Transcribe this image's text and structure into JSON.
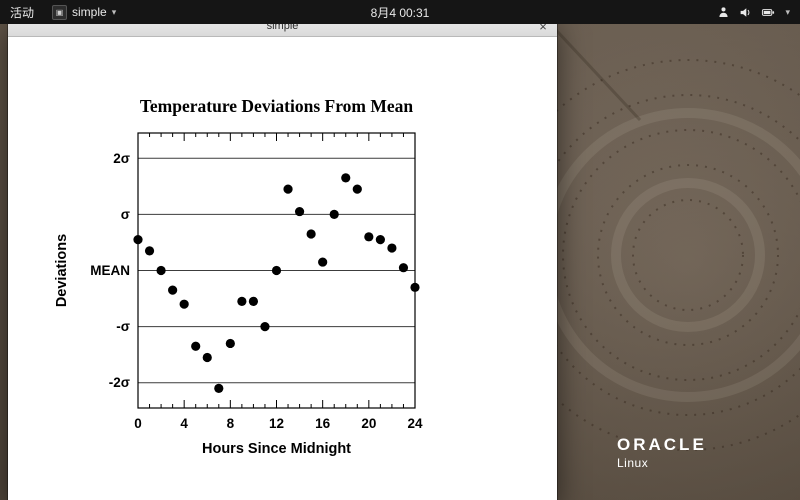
{
  "top_bar": {
    "activities_label": "活动",
    "app_menu_label": "simple",
    "clock": "8月4 00:31",
    "tray_icons": [
      "user-status-icon",
      "volume-icon",
      "battery-icon",
      "dropdown-arrow-icon"
    ]
  },
  "window": {
    "title": "simple",
    "close_label": "×"
  },
  "desktop": {
    "brand_primary": "ORACLE",
    "brand_secondary": "Linux"
  },
  "chart_data": {
    "type": "scatter",
    "title": "Temperature Deviations From Mean",
    "xlabel": "Hours Since Midnight",
    "ylabel": "Deviations",
    "xlim": [
      0,
      24
    ],
    "ylim": [
      -2.45,
      2.45
    ],
    "x_ticks": [
      0,
      4,
      8,
      12,
      16,
      20,
      24
    ],
    "x_minor_tick_step": 1,
    "y_ticks": [
      {
        "value": 2,
        "label": "2σ"
      },
      {
        "value": 1,
        "label": "σ"
      },
      {
        "value": 0,
        "label": "MEAN"
      },
      {
        "value": -1,
        "label": "-σ"
      },
      {
        "value": -2,
        "label": "-2σ"
      }
    ],
    "grid": "horizontal",
    "legend": "none",
    "marker": {
      "shape": "circle",
      "color": "#000000"
    },
    "x": [
      0,
      1,
      2,
      3,
      4,
      5,
      6,
      7,
      8,
      9,
      10,
      11,
      12,
      13,
      14,
      15,
      16,
      17,
      18,
      19,
      20,
      21,
      22,
      23,
      24
    ],
    "y": [
      0.55,
      0.35,
      0.0,
      -0.35,
      -0.6,
      -1.35,
      -1.55,
      -2.1,
      -1.3,
      -0.55,
      -0.55,
      -1.0,
      0.0,
      1.45,
      1.05,
      0.65,
      0.15,
      1.0,
      1.65,
      1.45,
      0.6,
      0.55,
      0.4,
      0.05,
      -0.3
    ]
  }
}
